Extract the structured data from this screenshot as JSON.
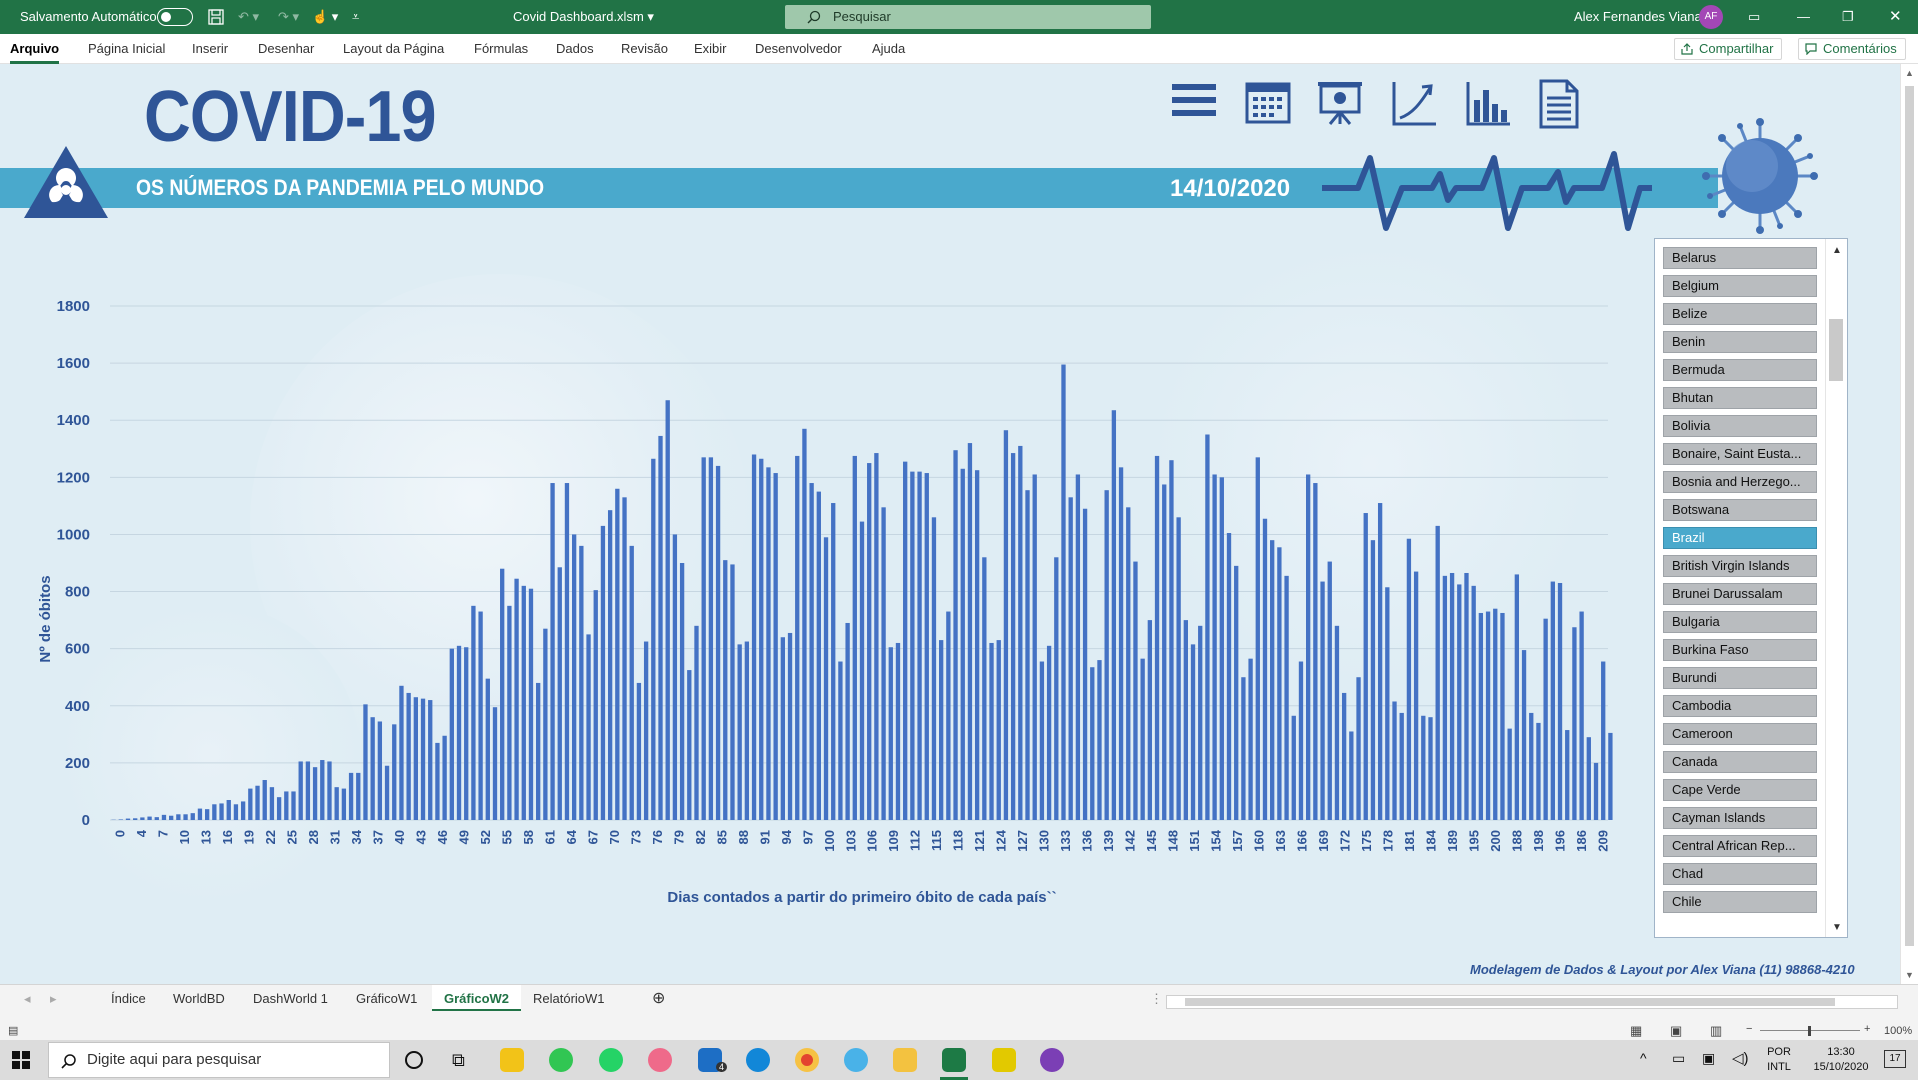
{
  "titlebar": {
    "autosave_label": "Salvamento Automático",
    "file_name": "Covid Dashboard.xlsm",
    "search_placeholder": "Pesquisar",
    "user_name": "Alex Fernandes Viana",
    "user_initials": "AF"
  },
  "ribbon": {
    "tabs": [
      "Arquivo",
      "Página Inicial",
      "Inserir",
      "Desenhar",
      "Layout da Página",
      "Fórmulas",
      "Dados",
      "Revisão",
      "Exibir",
      "Desenvolvedor",
      "Ajuda"
    ],
    "share_label": "Compartilhar",
    "comments_label": "Comentários"
  },
  "dashboard": {
    "title": "COVID-19",
    "subtitle": "OS NÚMEROS DA PANDEMIA PELO MUNDO",
    "date": "14/10/2020",
    "nav_icons": [
      "menu-icon",
      "calendar-icon",
      "presentation-icon",
      "trend-icon",
      "bar-chart-icon",
      "document-icon"
    ],
    "credit": "Modelagem de Dados & Layout por Alex Viana (11) 98868-4210",
    "accent_color": "#2f5597",
    "banner_color": "#4aa9cc",
    "bar_color": "#4472c4"
  },
  "countries": {
    "items": [
      "Belarus",
      "Belgium",
      "Belize",
      "Benin",
      "Bermuda",
      "Bhutan",
      "Bolivia",
      "Bonaire, Saint Eusta...",
      "Bosnia and Herzego...",
      "Botswana",
      "Brazil",
      "British Virgin Islands",
      "Brunei Darussalam",
      "Bulgaria",
      "Burkina Faso",
      "Burundi",
      "Cambodia",
      "Cameroon",
      "Canada",
      "Cape Verde",
      "Cayman Islands",
      "Central African Rep...",
      "Chad",
      "Chile"
    ],
    "selected": "Brazil"
  },
  "chart_data": {
    "type": "bar",
    "xlabel": "Dias contados a partir do primeiro óbito de cada país``",
    "ylabel": "Nº de óbitos",
    "ylim": [
      0,
      1800
    ],
    "yticks": [
      0,
      200,
      400,
      600,
      800,
      1000,
      1200,
      1400,
      1600,
      1800
    ],
    "grid": true,
    "legend": "none",
    "x_tick_labels": [
      "0",
      "4",
      "7",
      "10",
      "13",
      "16",
      "19",
      "22",
      "25",
      "28",
      "31",
      "34",
      "37",
      "40",
      "43",
      "46",
      "49",
      "52",
      "55",
      "58",
      "61",
      "64",
      "67",
      "70",
      "73",
      "76",
      "79",
      "82",
      "85",
      "88",
      "91",
      "94",
      "97",
      "100",
      "103",
      "106",
      "109",
      "112",
      "115",
      "118",
      "121",
      "124",
      "127",
      "130",
      "133",
      "136",
      "139",
      "142",
      "145",
      "148",
      "151",
      "154",
      "157",
      "160",
      "163",
      "166",
      "169",
      "172",
      "175",
      "178",
      "181",
      "184",
      "189",
      "195",
      "200",
      "188",
      "198",
      "196",
      "186",
      "209"
    ],
    "values": [
      1,
      2,
      5,
      6,
      9,
      12,
      10,
      18,
      15,
      20,
      20,
      24,
      40,
      38,
      55,
      58,
      70,
      55,
      65,
      110,
      120,
      140,
      115,
      80,
      100,
      100,
      205,
      205,
      185,
      210,
      205,
      115,
      110,
      165,
      165,
      405,
      360,
      345,
      190,
      335,
      470,
      445,
      430,
      425,
      420,
      270,
      295,
      600,
      610,
      605,
      750,
      730,
      495,
      395,
      880,
      750,
      845,
      820,
      810,
      480,
      670,
      1180,
      885,
      1180,
      1000,
      960,
      650,
      805,
      1030,
      1085,
      1160,
      1130,
      960,
      480,
      625,
      1265,
      1345,
      1470,
      1000,
      900,
      525,
      680,
      1270,
      1270,
      1240,
      910,
      895,
      615,
      625,
      1280,
      1265,
      1235,
      1215,
      640,
      655,
      1275,
      1370,
      1180,
      1150,
      990,
      1110,
      555,
      690,
      1275,
      1045,
      1250,
      1285,
      1095,
      605,
      620,
      1255,
      1220,
      1220,
      1215,
      1060,
      630,
      730,
      1295,
      1230,
      1320,
      1225,
      920,
      620,
      630,
      1365,
      1285,
      1310,
      1155,
      1210,
      555,
      610,
      920,
      1595,
      1130,
      1210,
      1090,
      535,
      560,
      1155,
      1435,
      1235,
      1095,
      905,
      565,
      700,
      1275,
      1175,
      1260,
      1060,
      700,
      615,
      680,
      1350,
      1210,
      1200,
      1005,
      890,
      500,
      565,
      1270,
      1055,
      980,
      955,
      855,
      365,
      555,
      1210,
      1180,
      835,
      905,
      680,
      445,
      310,
      500,
      1075,
      980,
      1110,
      815,
      415,
      375,
      985,
      870,
      365,
      360,
      1030,
      855,
      865,
      825,
      865,
      820,
      725,
      730,
      740,
      725,
      320,
      860,
      595,
      375,
      340,
      705,
      835,
      830,
      315,
      675,
      730,
      290,
      200,
      555,
      305
    ]
  },
  "sheets": {
    "tabs": [
      "Índice",
      "WorldBD",
      "DashWorld 1",
      "GráficoW1",
      "GráficoW2",
      "RelatórioW1"
    ],
    "active": "GráficoW2"
  },
  "status": {
    "zoom": "100%"
  },
  "taskbar": {
    "search_placeholder": "Digite aqui para pesquisar",
    "mail_badge": "4",
    "lang_top": "POR",
    "lang_bottom": "INTL",
    "time": "13:30",
    "date": "15/10/2020",
    "notification_count": "17"
  }
}
